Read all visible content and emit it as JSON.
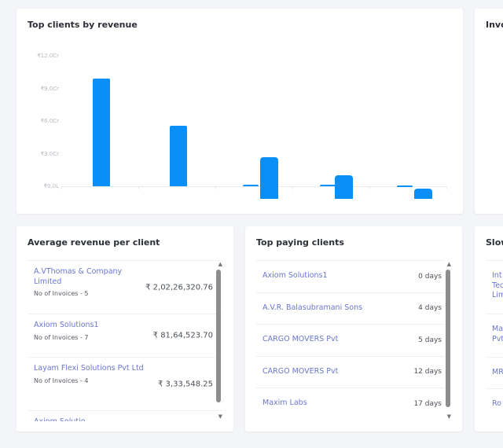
{
  "revenue_card": {
    "title": "Top clients by revenue"
  },
  "chart_data": {
    "type": "bar",
    "title": "Top clients by revenue",
    "ylim": [
      0,
      12
    ],
    "yticks": [
      "₹12.0Cr",
      "₹9.0Cr",
      "₹6.0Cr",
      "₹3.0Cr",
      "₹0.0L"
    ],
    "ytick_values": [
      12,
      9,
      6,
      3,
      0
    ],
    "unit": "Cr",
    "categories": [
      "",
      "",
      "",
      "",
      ""
    ],
    "series": [
      {
        "values": [
          9.9,
          5.6,
          0.15,
          0.15,
          0.1
        ]
      },
      {
        "values": [
          null,
          null,
          2.7,
          1.0,
          -0.2
        ]
      }
    ],
    "grid": false,
    "color": "#0a8ff7"
  },
  "invoice_card": {
    "title": "Invo"
  },
  "avg_card": {
    "title": "Average revenue per client",
    "items": [
      {
        "name": "A.VThomas & Company Limited",
        "invoices": "No of Invoices - 5",
        "amount": "₹ 2,02,26,320.76"
      },
      {
        "name": "Axiom Solutions1",
        "invoices": "No of Invoices - 7",
        "amount": "₹ 81,64,523.70"
      },
      {
        "name": "Layam Flexi Solutions Pvt Ltd",
        "invoices": "No of Invoices - 4",
        "amount": "₹ 3,33,548.25"
      },
      {
        "name": "Axiom Solutio",
        "invoices": "",
        "amount": ""
      }
    ]
  },
  "paying_card": {
    "title": "Top paying clients",
    "items": [
      {
        "name": "Axiom Solutions1",
        "days": "0 days"
      },
      {
        "name": "A.V.R. Balasubramani Sons",
        "days": "4 days"
      },
      {
        "name": "CARGO MOVERS Pvt",
        "days": "5 days"
      },
      {
        "name": "CARGO MOVERS Pvt",
        "days": "12 days"
      },
      {
        "name": "Maxim Labs",
        "days": "17 days"
      }
    ]
  },
  "slow_card": {
    "title": "Slow",
    "items": [
      {
        "name": "Int Tec Lim"
      },
      {
        "name": "Ma Pvt"
      },
      {
        "name": "MR"
      },
      {
        "name": "Ro"
      }
    ]
  }
}
